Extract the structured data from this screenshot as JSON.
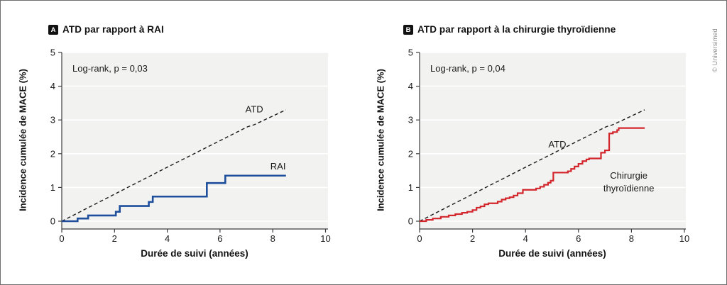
{
  "page": {
    "credit": "© Universimed"
  },
  "panels": [
    {
      "badge": "A",
      "title": "ATD par rapport à RAI"
    },
    {
      "badge": "B",
      "title": "ATD par rapport à la chirurgie thyroïdienne"
    }
  ],
  "colors": {
    "atd_line": "#1a1a1a",
    "rai_line": "#1e4f9c",
    "surgery_line": "#d3262c",
    "plot_bg": "#f2f2f0",
    "grid": "#ffffff",
    "axis": "#3d3d3d"
  },
  "chart_data": [
    {
      "type": "line",
      "title": "ATD par rapport à RAI",
      "annotation": "Log-rank, p = 0,03",
      "xlabel": "Durée de suivi (années)",
      "ylabel": "Incidence cumulée de MACE (%)",
      "xlim": [
        0,
        10
      ],
      "ylim": [
        0,
        5
      ],
      "xticks": [
        0,
        2,
        4,
        6,
        8,
        10
      ],
      "yticks": [
        0,
        1,
        2,
        3,
        4,
        5
      ],
      "grid": "horizontal-white",
      "legend_position": "inline-labels",
      "series": [
        {
          "name": "ATD",
          "color": "#1a1a1a",
          "dash": true,
          "step": false,
          "width": 1.4,
          "label_pos": [
            7.3,
            3.22
          ],
          "points": [
            [
              0,
              0
            ],
            [
              4,
              1.6
            ],
            [
              7.05,
              2.8
            ],
            [
              7.3,
              2.86
            ],
            [
              8.5,
              3.3
            ]
          ]
        },
        {
          "name": "RAI",
          "color": "#1e4f9c",
          "dash": false,
          "step": true,
          "width": 2.6,
          "label_pos": [
            8.2,
            1.53
          ],
          "points": [
            [
              0,
              0
            ],
            [
              0.6,
              0.08
            ],
            [
              1.0,
              0.17
            ],
            [
              2.05,
              0.28
            ],
            [
              2.2,
              0.45
            ],
            [
              3.3,
              0.57
            ],
            [
              3.45,
              0.73
            ],
            [
              5.5,
              1.13
            ],
            [
              6.2,
              1.35
            ],
            [
              8.5,
              1.35
            ]
          ]
        }
      ]
    },
    {
      "type": "line",
      "title": "ATD par rapport à la chirurgie thyroïdienne",
      "annotation": "Log-rank, p = 0,04",
      "xlabel": "Durée de suivi (années)",
      "ylabel": "Incidence cumulée de MACE (%)",
      "xlim": [
        0,
        10
      ],
      "ylim": [
        0,
        5
      ],
      "xticks": [
        0,
        2,
        4,
        6,
        8,
        10
      ],
      "yticks": [
        0,
        1,
        2,
        3,
        4,
        5
      ],
      "grid": "horizontal-white",
      "legend_position": "inline-labels",
      "series": [
        {
          "name": "ATD",
          "color": "#1a1a1a",
          "dash": true,
          "step": false,
          "width": 1.4,
          "label_pos": [
            5.2,
            2.18
          ],
          "points": [
            [
              0,
              0
            ],
            [
              4,
              1.6
            ],
            [
              7.05,
              2.8
            ],
            [
              7.3,
              2.86
            ],
            [
              8.5,
              3.3
            ]
          ]
        },
        {
          "name": "Chirurgie thyroïdienne",
          "color": "#d3262c",
          "dash": false,
          "step": true,
          "width": 2.2,
          "label_lines": [
            "Chirurgie",
            "thyroïdienne"
          ],
          "label_pos": [
            7.9,
            1.26
          ],
          "points": [
            [
              0,
              0
            ],
            [
              0.25,
              0.04
            ],
            [
              0.5,
              0.08
            ],
            [
              0.8,
              0.13
            ],
            [
              1.1,
              0.17
            ],
            [
              1.35,
              0.21
            ],
            [
              1.6,
              0.25
            ],
            [
              1.8,
              0.28
            ],
            [
              2.0,
              0.33
            ],
            [
              2.15,
              0.4
            ],
            [
              2.3,
              0.44
            ],
            [
              2.45,
              0.5
            ],
            [
              2.6,
              0.53
            ],
            [
              2.95,
              0.58
            ],
            [
              3.1,
              0.64
            ],
            [
              3.25,
              0.68
            ],
            [
              3.4,
              0.71
            ],
            [
              3.55,
              0.76
            ],
            [
              3.7,
              0.83
            ],
            [
              3.9,
              0.93
            ],
            [
              4.4,
              0.97
            ],
            [
              4.55,
              1.02
            ],
            [
              4.7,
              1.08
            ],
            [
              4.85,
              1.14
            ],
            [
              4.95,
              1.2
            ],
            [
              5.05,
              1.44
            ],
            [
              5.6,
              1.48
            ],
            [
              5.72,
              1.55
            ],
            [
              5.85,
              1.62
            ],
            [
              6.0,
              1.7
            ],
            [
              6.15,
              1.78
            ],
            [
              6.3,
              1.83
            ],
            [
              6.4,
              1.86
            ],
            [
              6.85,
              2.03
            ],
            [
              7.0,
              2.1
            ],
            [
              7.16,
              2.6
            ],
            [
              7.3,
              2.64
            ],
            [
              7.46,
              2.7
            ],
            [
              7.52,
              2.76
            ],
            [
              8.5,
              2.76
            ]
          ]
        }
      ]
    }
  ]
}
